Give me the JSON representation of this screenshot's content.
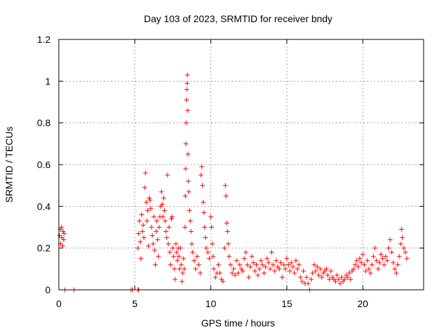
{
  "chart_data": {
    "type": "scatter",
    "title": "Day 103 of 2023, SRMTID for receiver bndy",
    "xlabel": "GPS time / hours",
    "ylabel": "SRMTID / TECUs",
    "xlim": [
      0,
      24
    ],
    "ylim": [
      0,
      1.2
    ],
    "xticks": [
      0,
      5,
      10,
      15,
      20
    ],
    "xtick_labels": [
      "0",
      "5",
      "10",
      "15",
      "20"
    ],
    "yticks": [
      0,
      0.2,
      0.4,
      0.6,
      0.8,
      1.0,
      1.2
    ],
    "ytick_labels": [
      "0",
      "0.2",
      "0.4",
      "0.6",
      "0.8",
      "1",
      "1.2"
    ],
    "grid": true,
    "marker": "+",
    "series": [
      {
        "name": "SRMTID",
        "color": "#ff0000",
        "points": [
          [
            0.05,
            0.26
          ],
          [
            0.1,
            0.29
          ],
          [
            0.12,
            0.22
          ],
          [
            0.18,
            0.3
          ],
          [
            0.2,
            0.25
          ],
          [
            0.25,
            0.21
          ],
          [
            0.28,
            0.28
          ],
          [
            0.32,
            0.24
          ],
          [
            0.35,
            0.27
          ],
          [
            0.4,
            0.0
          ],
          [
            1.0,
            0.0
          ],
          [
            4.75,
            0.0
          ],
          [
            4.85,
            0.0
          ],
          [
            5.2,
            0.0
          ],
          [
            5.25,
            0.0
          ],
          [
            5.2,
            0.2
          ],
          [
            5.25,
            0.27
          ],
          [
            5.3,
            0.33
          ],
          [
            5.35,
            0.23
          ],
          [
            5.4,
            0.15
          ],
          [
            5.45,
            0.36
          ],
          [
            5.5,
            0.28
          ],
          [
            5.55,
            0.31
          ],
          [
            5.6,
            0.25
          ],
          [
            5.65,
            0.49
          ],
          [
            5.7,
            0.56
          ],
          [
            5.75,
            0.42
          ],
          [
            5.8,
            0.33
          ],
          [
            5.85,
            0.38
          ],
          [
            5.9,
            0.21
          ],
          [
            5.95,
            0.44
          ],
          [
            6.0,
            0.43
          ],
          [
            6.05,
            0.39
          ],
          [
            6.1,
            0.3
          ],
          [
            6.15,
            0.26
          ],
          [
            6.2,
            0.22
          ],
          [
            6.25,
            0.35
          ],
          [
            6.3,
            0.19
          ],
          [
            6.35,
            0.12
          ],
          [
            6.4,
            0.28
          ],
          [
            6.45,
            0.33
          ],
          [
            6.5,
            0.24
          ],
          [
            6.55,
            0.16
          ],
          [
            6.6,
            0.3
          ],
          [
            6.65,
            0.35
          ],
          [
            6.7,
            0.4
          ],
          [
            6.75,
            0.47
          ],
          [
            6.8,
            0.41
          ],
          [
            6.85,
            0.35
          ],
          [
            6.9,
            0.44
          ],
          [
            6.95,
            0.38
          ],
          [
            7.0,
            0.33
          ],
          [
            7.05,
            0.28
          ],
          [
            7.1,
            0.25
          ],
          [
            7.15,
            0.55
          ],
          [
            7.2,
            0.22
          ],
          [
            7.25,
            0.3
          ],
          [
            7.3,
            0.18
          ],
          [
            7.35,
            0.12
          ],
          [
            7.4,
            0.34
          ],
          [
            7.45,
            0.35
          ],
          [
            7.5,
            0.2
          ],
          [
            7.55,
            0.16
          ],
          [
            7.6,
            0.1
          ],
          [
            7.65,
            0.05
          ],
          [
            7.7,
            0.22
          ],
          [
            7.75,
            0.18
          ],
          [
            7.8,
            0.14
          ],
          [
            7.85,
            0.2
          ],
          [
            7.9,
            0.16
          ],
          [
            7.95,
            0.1
          ],
          [
            8.0,
            0.2
          ],
          [
            8.05,
            0.12
          ],
          [
            8.1,
            0.04
          ],
          [
            8.15,
            0.08
          ],
          [
            8.2,
            0.15
          ],
          [
            8.25,
            0.1
          ],
          [
            8.3,
            0.3
          ],
          [
            8.32,
            0.45
          ],
          [
            8.34,
            0.58
          ],
          [
            8.36,
            0.7
          ],
          [
            8.38,
            0.8
          ],
          [
            8.4,
            0.91
          ],
          [
            8.42,
            0.96
          ],
          [
            8.44,
            0.99
          ],
          [
            8.46,
            1.03
          ],
          [
            8.48,
            0.86
          ],
          [
            8.5,
            0.65
          ],
          [
            8.52,
            0.52
          ],
          [
            8.55,
            0.47
          ],
          [
            8.6,
            0.38
          ],
          [
            8.65,
            0.33
          ],
          [
            8.7,
            0.28
          ],
          [
            8.75,
            0.22
          ],
          [
            8.8,
            0.18
          ],
          [
            8.9,
            0.14
          ],
          [
            9.0,
            0.1
          ],
          [
            9.1,
            0.16
          ],
          [
            9.2,
            0.12
          ],
          [
            9.3,
            0.08
          ],
          [
            9.35,
            0.55
          ],
          [
            9.4,
            0.59
          ],
          [
            9.45,
            0.5
          ],
          [
            9.5,
            0.42
          ],
          [
            9.55,
            0.37
          ],
          [
            9.6,
            0.3
          ],
          [
            9.65,
            0.25
          ],
          [
            9.7,
            0.2
          ],
          [
            9.8,
            0.18
          ],
          [
            9.9,
            0.15
          ],
          [
            10.0,
            0.35
          ],
          [
            10.05,
            0.3
          ],
          [
            10.1,
            0.22
          ],
          [
            10.15,
            0.16
          ],
          [
            10.2,
            0.1
          ],
          [
            10.3,
            0.06
          ],
          [
            10.4,
            0.08
          ],
          [
            10.5,
            0.12
          ],
          [
            10.6,
            0.08
          ],
          [
            10.7,
            0.05
          ],
          [
            10.8,
            0.04
          ],
          [
            10.9,
            0.2
          ],
          [
            10.95,
            0.5
          ],
          [
            11.0,
            0.45
          ],
          [
            11.05,
            0.32
          ],
          [
            11.1,
            0.28
          ],
          [
            11.15,
            0.22
          ],
          [
            11.2,
            0.16
          ],
          [
            11.3,
            0.12
          ],
          [
            11.4,
            0.08
          ],
          [
            11.5,
            0.1
          ],
          [
            11.6,
            0.07
          ],
          [
            11.7,
            0.14
          ],
          [
            11.8,
            0.08
          ],
          [
            11.9,
            0.12
          ],
          [
            12.0,
            0.1
          ],
          [
            12.1,
            0.09
          ],
          [
            12.2,
            0.15
          ],
          [
            12.3,
            0.18
          ],
          [
            12.4,
            0.12
          ],
          [
            12.5,
            0.06
          ],
          [
            12.6,
            0.11
          ],
          [
            12.7,
            0.16
          ],
          [
            12.8,
            0.13
          ],
          [
            12.9,
            0.09
          ],
          [
            13.0,
            0.12
          ],
          [
            13.1,
            0.07
          ],
          [
            13.2,
            0.1
          ],
          [
            13.3,
            0.14
          ],
          [
            13.4,
            0.12
          ],
          [
            13.5,
            0.08
          ],
          [
            13.6,
            0.11
          ],
          [
            13.7,
            0.15
          ],
          [
            13.8,
            0.13
          ],
          [
            13.9,
            0.1
          ],
          [
            14.0,
            0.18
          ],
          [
            14.1,
            0.12
          ],
          [
            14.2,
            0.09
          ],
          [
            14.3,
            0.14
          ],
          [
            14.4,
            0.11
          ],
          [
            14.5,
            0.1
          ],
          [
            14.6,
            0.13
          ],
          [
            14.7,
            0.06
          ],
          [
            14.8,
            0.12
          ],
          [
            14.9,
            0.1
          ],
          [
            15.0,
            0.15
          ],
          [
            15.1,
            0.12
          ],
          [
            15.2,
            0.09
          ],
          [
            15.3,
            0.13
          ],
          [
            15.4,
            0.11
          ],
          [
            15.5,
            0.08
          ],
          [
            15.6,
            0.14
          ],
          [
            15.7,
            0.1
          ],
          [
            15.8,
            0.12
          ],
          [
            15.9,
            0.06
          ],
          [
            16.0,
            0.04
          ],
          [
            16.1,
            0.09
          ],
          [
            16.2,
            0.03
          ],
          [
            16.3,
            0.06
          ],
          [
            16.4,
            0.03
          ],
          [
            16.5,
            0.0
          ],
          [
            16.6,
            0.05
          ],
          [
            16.7,
            0.08
          ],
          [
            16.8,
            0.12
          ],
          [
            16.9,
            0.09
          ],
          [
            17.0,
            0.11
          ],
          [
            17.1,
            0.07
          ],
          [
            17.2,
            0.1
          ],
          [
            17.3,
            0.06
          ],
          [
            17.4,
            0.08
          ],
          [
            17.5,
            0.09
          ],
          [
            17.6,
            0.1
          ],
          [
            17.7,
            0.07
          ],
          [
            17.8,
            0.05
          ],
          [
            17.9,
            0.09
          ],
          [
            18.0,
            0.06
          ],
          [
            18.1,
            0.05
          ],
          [
            18.2,
            0.04
          ],
          [
            18.3,
            0.07
          ],
          [
            18.4,
            0.05
          ],
          [
            18.5,
            0.03
          ],
          [
            18.6,
            0.06
          ],
          [
            18.7,
            0.04
          ],
          [
            18.8,
            0.05
          ],
          [
            18.9,
            0.07
          ],
          [
            19.0,
            0.06
          ],
          [
            19.1,
            0.08
          ],
          [
            19.2,
            0.05
          ],
          [
            19.3,
            0.09
          ],
          [
            19.4,
            0.1
          ],
          [
            19.5,
            0.12
          ],
          [
            19.6,
            0.14
          ],
          [
            19.7,
            0.11
          ],
          [
            19.8,
            0.15
          ],
          [
            19.9,
            0.13
          ],
          [
            20.0,
            0.17
          ],
          [
            20.1,
            0.12
          ],
          [
            20.2,
            0.09
          ],
          [
            20.3,
            0.14
          ],
          [
            20.4,
            0.1
          ],
          [
            20.5,
            0.08
          ],
          [
            20.6,
            0.12
          ],
          [
            20.7,
            0.16
          ],
          [
            20.8,
            0.2
          ],
          [
            20.9,
            0.14
          ],
          [
            21.0,
            0.1
          ],
          [
            21.1,
            0.13
          ],
          [
            21.2,
            0.17
          ],
          [
            21.3,
            0.15
          ],
          [
            21.4,
            0.12
          ],
          [
            21.5,
            0.16
          ],
          [
            21.6,
            0.14
          ],
          [
            21.7,
            0.2
          ],
          [
            21.8,
            0.24
          ],
          [
            21.9,
            0.18
          ],
          [
            22.0,
            0.13
          ],
          [
            22.1,
            0.1
          ],
          [
            22.2,
            0.08
          ],
          [
            22.3,
            0.12
          ],
          [
            22.4,
            0.16
          ],
          [
            22.5,
            0.22
          ],
          [
            22.55,
            0.29
          ],
          [
            22.6,
            0.25
          ],
          [
            22.7,
            0.2
          ],
          [
            22.8,
            0.18
          ],
          [
            22.9,
            0.15
          ]
        ]
      }
    ]
  }
}
